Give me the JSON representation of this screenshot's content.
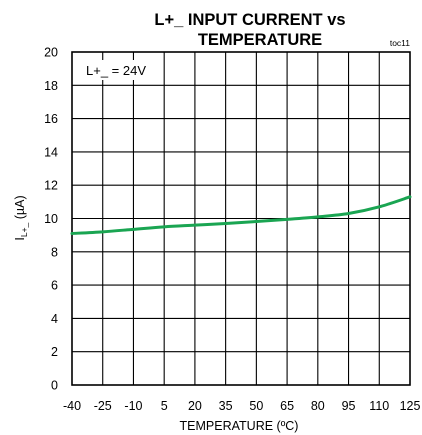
{
  "chart_data": {
    "type": "line",
    "title_line1": "L+_ INPUT CURRENT vs",
    "title_line2": "TEMPERATURE",
    "figure_id": "toc11",
    "condition_label": "L+_ = 24V",
    "xlabel": "TEMPERATURE (ºC)",
    "ylabel_main": "I",
    "ylabel_sub": "L+_",
    "ylabel_unit": " (µA)",
    "xlim": [
      -40,
      125
    ],
    "ylim": [
      0,
      20
    ],
    "x_ticks": [
      "-40",
      "-25",
      "-10",
      "5",
      "20",
      "35",
      "50",
      "65",
      "80",
      "95",
      "110",
      "125"
    ],
    "y_ticks": [
      "0",
      "2",
      "4",
      "6",
      "8",
      "10",
      "12",
      "14",
      "16",
      "18",
      "20"
    ],
    "grid": true,
    "line_color": "#1aa552",
    "series": [
      {
        "x": [
          -40,
          -25,
          -10,
          5,
          20,
          35,
          50,
          65,
          80,
          95,
          110,
          125
        ],
        "y": [
          9.1,
          9.2,
          9.35,
          9.5,
          9.6,
          9.7,
          9.82,
          9.95,
          10.1,
          10.3,
          10.7,
          11.3
        ]
      }
    ]
  }
}
